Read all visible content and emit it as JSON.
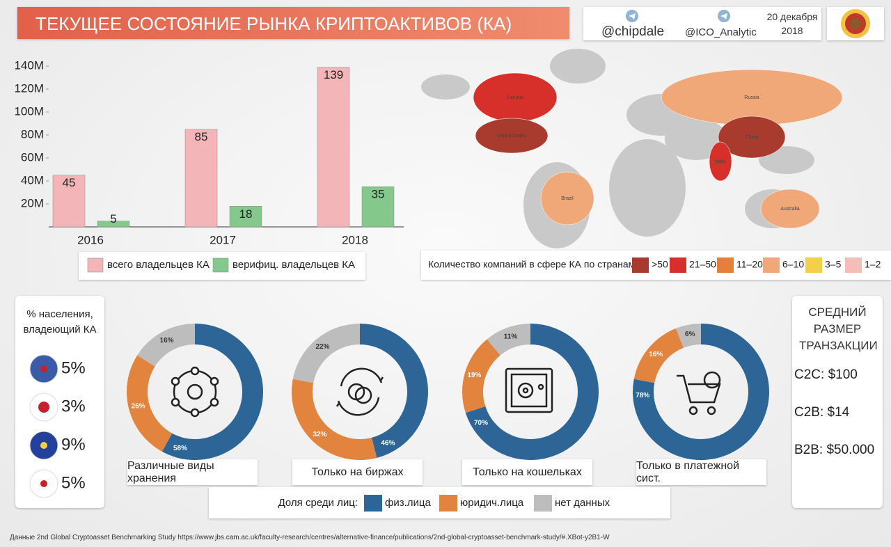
{
  "header": {
    "title": "ТЕКУЩЕЕ СОСТОЯНИЕ РЫНКА КРИПТОАКТИВОВ (КА)",
    "handle_1": "@chipdale",
    "handle_2": "@ICO_Analytic",
    "date": "20 декабря 2018"
  },
  "chart_data": [
    {
      "type": "bar",
      "categories": [
        "2016",
        "2017",
        "2018"
      ],
      "series": [
        {
          "name": "всего владельцев КА",
          "color": "#f4b5b8",
          "values": [
            45,
            85,
            139
          ]
        },
        {
          "name": "верифиц. владельцев КА",
          "color": "#84c88c",
          "values": [
            5,
            18,
            35
          ]
        }
      ],
      "ylim": [
        0,
        140
      ],
      "yticks": [
        {
          "value": 20,
          "label": "20M"
        },
        {
          "value": 40,
          "label": "40M"
        },
        {
          "value": 60,
          "label": "60M"
        },
        {
          "value": 80,
          "label": "80M"
        },
        {
          "value": 100,
          "label": "100M"
        },
        {
          "value": 120,
          "label": "120M"
        },
        {
          "value": 140,
          "label": "140M"
        }
      ]
    },
    {
      "type": "donut",
      "title": "Различные виды хранения",
      "values": [
        58,
        26,
        16
      ],
      "value_labels": [
        "58%",
        "26%",
        "16%"
      ]
    },
    {
      "type": "donut",
      "title": "Только на биржах",
      "values": [
        46,
        32,
        22
      ],
      "value_labels": [
        "46%",
        "32%",
        "22%"
      ]
    },
    {
      "type": "donut",
      "title": "Только на кошельках",
      "values": [
        70,
        19,
        11
      ],
      "value_labels": [
        "70%",
        "19%",
        "11%"
      ]
    },
    {
      "type": "donut",
      "title": "Только в платежной сист.",
      "values": [
        78,
        16,
        6
      ],
      "value_labels": [
        "78%",
        "16%",
        "6%"
      ]
    }
  ],
  "donut_legend": {
    "label": "Доля среди лиц:",
    "categories": [
      "физ.лица",
      "юридич.лица",
      "нет данных"
    ],
    "colors": [
      "#2d6596",
      "#e3843e",
      "#bdbdbd"
    ]
  },
  "map": {
    "countries": [
      {
        "label": "Canada",
        "color": "#d7302a"
      },
      {
        "label": "United States",
        "color": "#a93a2e"
      },
      {
        "label": "Russia",
        "color": "#f0a878"
      },
      {
        "label": "China",
        "color": "#a93a2e"
      },
      {
        "label": "India",
        "color": "#d7302a"
      },
      {
        "label": "Brazil",
        "color": "#f0a878"
      },
      {
        "label": "Australia",
        "color": "#f0a878"
      }
    ],
    "legend_label": "Количество компаний в сфере КА по странам:",
    "legend": [
      {
        "label": ">50",
        "color": "#a93a2e"
      },
      {
        "label": "21–50",
        "color": "#d7302a"
      },
      {
        "label": "11–20",
        "color": "#e5803c"
      },
      {
        "label": "6–10",
        "color": "#f0a878"
      },
      {
        "label": "3–5",
        "color": "#f2d04a"
      },
      {
        "label": "1–2",
        "color": "#f5bcb8"
      }
    ]
  },
  "population": {
    "title": "% населения, владеющий КА",
    "rows": [
      "5%",
      "3%",
      "9%",
      "5%"
    ]
  },
  "transaction": {
    "title": "СРЕДНИЙ РАЗМЕР ТРАНЗАКЦИИ",
    "rows": [
      "C2C: $100",
      "C2B: $14",
      "B2B: $50.000"
    ]
  },
  "footer": "Данные 2nd Global Cryptoasset Benchmarking Study  https://www.jbs.cam.ac.uk/faculty-research/centres/alternative-finance/publications/2nd-global-cryptoasset-benchmark-study/#.XBot-y2B1-W"
}
